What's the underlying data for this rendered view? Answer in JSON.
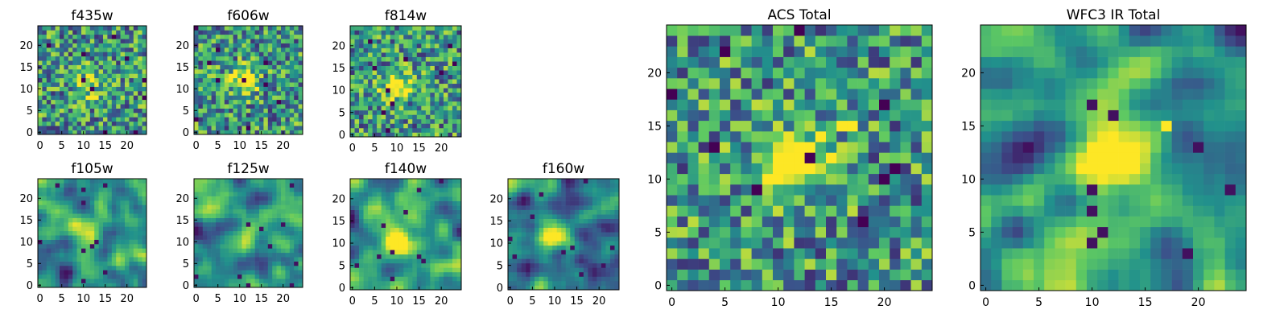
{
  "figure": {
    "colormap": "viridis",
    "colors": [
      "#440154",
      "#3b528b",
      "#21918c",
      "#5ec962",
      "#fde725"
    ],
    "background": "#ffffff"
  },
  "chart_data": [
    {
      "type": "heatmap",
      "title": "f435w",
      "xlabel": "",
      "ylabel": "",
      "xlim": [
        -0.5,
        24.5
      ],
      "ylim": [
        -0.5,
        24.5
      ],
      "xticks": [
        0,
        5,
        10,
        15,
        20
      ],
      "yticks": [
        0,
        5,
        10,
        15,
        20
      ],
      "grid": false,
      "noise": "pixel",
      "blob": [
        11,
        11
      ],
      "blob_strength": 0.35
    },
    {
      "type": "heatmap",
      "title": "f606w",
      "xlabel": "",
      "ylabel": "",
      "xlim": [
        -0.5,
        24.5
      ],
      "ylim": [
        -0.5,
        24.5
      ],
      "xticks": [
        0,
        5,
        10,
        15,
        20
      ],
      "yticks": [
        0,
        5,
        10,
        15,
        20
      ],
      "grid": false,
      "noise": "pixel",
      "blob": [
        11,
        12
      ],
      "blob_strength": 0.55
    },
    {
      "type": "heatmap",
      "title": "f814w",
      "xlabel": "",
      "ylabel": "",
      "xlim": [
        -0.5,
        24.5
      ],
      "ylim": [
        -0.5,
        24.5
      ],
      "xticks": [
        0,
        5,
        10,
        15,
        20
      ],
      "yticks": [
        0,
        5,
        10,
        15,
        20
      ],
      "grid": false,
      "noise": "pixel",
      "blob": [
        10,
        11
      ],
      "blob_strength": 0.6
    },
    {
      "type": "heatmap",
      "title": "f105w",
      "xlabel": "",
      "ylabel": "",
      "xlim": [
        -0.5,
        24.5
      ],
      "ylim": [
        -0.5,
        24.5
      ],
      "xticks": [
        0,
        5,
        10,
        15,
        20
      ],
      "yticks": [
        0,
        5,
        10,
        15,
        20
      ],
      "grid": false,
      "noise": "smooth",
      "blob": [
        11,
        12
      ],
      "blob_strength": 0.6
    },
    {
      "type": "heatmap",
      "title": "f125w",
      "xlabel": "",
      "ylabel": "",
      "xlim": [
        -0.5,
        24.5
      ],
      "ylim": [
        -0.5,
        24.5
      ],
      "xticks": [
        0,
        5,
        10,
        15,
        20
      ],
      "yticks": [
        0,
        5,
        10,
        15,
        20
      ],
      "grid": false,
      "noise": "smooth",
      "blob": [
        12,
        12
      ],
      "blob_strength": 0.55
    },
    {
      "type": "heatmap",
      "title": "f140w",
      "xlabel": "",
      "ylabel": "",
      "xlim": [
        -0.5,
        24.5
      ],
      "ylim": [
        -0.5,
        24.5
      ],
      "xticks": [
        0,
        5,
        10,
        15,
        20
      ],
      "yticks": [
        0,
        5,
        10,
        15,
        20
      ],
      "grid": false,
      "noise": "smooth",
      "blob": [
        10,
        11
      ],
      "blob_strength": 0.6
    },
    {
      "type": "heatmap",
      "title": "f160w",
      "xlabel": "",
      "ylabel": "",
      "xlim": [
        -0.5,
        24.5
      ],
      "ylim": [
        -0.5,
        24.5
      ],
      "xticks": [
        0,
        5,
        10,
        15,
        20
      ],
      "yticks": [
        0,
        5,
        10,
        15,
        20
      ],
      "grid": false,
      "noise": "smooth",
      "blob": [
        10,
        12
      ],
      "blob_strength": 0.55
    },
    {
      "type": "heatmap",
      "title": "ACS Total",
      "xlabel": "",
      "ylabel": "",
      "xlim": [
        -0.5,
        24.5
      ],
      "ylim": [
        -0.5,
        24.5
      ],
      "xticks": [
        0,
        5,
        10,
        15,
        20
      ],
      "yticks": [
        0,
        5,
        10,
        15,
        20
      ],
      "grid": false,
      "noise": "pixel",
      "blob": [
        11,
        11
      ],
      "blob_strength": 0.6,
      "highlights": [
        [
          11,
          11
        ],
        [
          12,
          12
        ],
        [
          13,
          13
        ],
        [
          10,
          10
        ],
        [
          16,
          15
        ],
        [
          17,
          15
        ],
        [
          12,
          11
        ],
        [
          14,
          14
        ]
      ]
    },
    {
      "type": "heatmap",
      "title": "WFC3 IR Total",
      "xlabel": "",
      "ylabel": "",
      "xlim": [
        -0.5,
        24.5
      ],
      "ylim": [
        -0.5,
        24.5
      ],
      "xticks": [
        0,
        5,
        10,
        15,
        20
      ],
      "yticks": [
        0,
        5,
        10,
        15,
        20
      ],
      "grid": false,
      "noise": "smooth",
      "blob": [
        12,
        12
      ],
      "blob_strength": 0.65,
      "highlights": [
        [
          11,
          12
        ],
        [
          12,
          12
        ],
        [
          13,
          12
        ],
        [
          12,
          11
        ],
        [
          17,
          15
        ]
      ]
    }
  ]
}
